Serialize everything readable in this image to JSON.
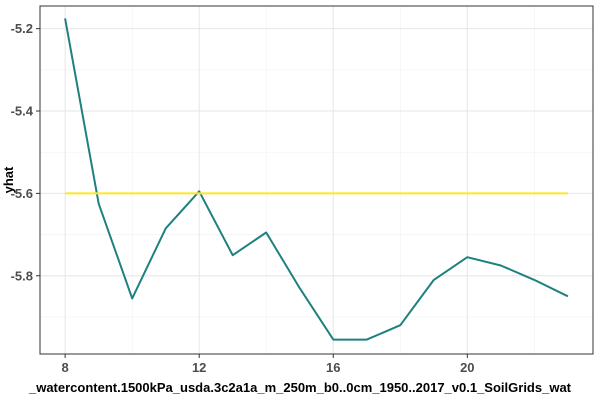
{
  "chart_data": {
    "type": "line",
    "title": "",
    "xlabel": "_watercontent.1500kPa_usda.3c2a1a_m_250m_b0..0cm_1950..2017_v0.1_SoilGrids_wat",
    "ylabel": "yhat",
    "xlim": [
      7.25,
      23.75
    ],
    "ylim": [
      -5.99,
      -5.145
    ],
    "x_ticks": [
      8,
      12,
      16,
      20
    ],
    "x_tick_labels": [
      "8",
      "12",
      "16",
      "20"
    ],
    "y_ticks": [
      -5.2,
      -5.4,
      -5.6,
      -5.8
    ],
    "y_tick_labels": [
      "-5.2",
      "-5.4",
      "-5.6",
      "-5.8"
    ],
    "x_minor": [
      10,
      14,
      18,
      22
    ],
    "y_minor": [
      -5.3,
      -5.5,
      -5.7,
      -5.9
    ],
    "grid": true,
    "series": [
      {
        "color": "#1f8080",
        "x": [
          8,
          9,
          10,
          11,
          12,
          13,
          14,
          15,
          16,
          17,
          18,
          19,
          20,
          21,
          22,
          23
        ],
        "y": [
          -5.175,
          -5.625,
          -5.855,
          -5.685,
          -5.595,
          -5.75,
          -5.695,
          -5.83,
          -5.955,
          -5.955,
          -5.92,
          -5.81,
          -5.755,
          -5.775,
          -5.81,
          -5.85
        ]
      },
      {
        "color": "#fde725",
        "x": [
          8,
          23
        ],
        "y": [
          -5.6,
          -5.6
        ]
      }
    ]
  }
}
